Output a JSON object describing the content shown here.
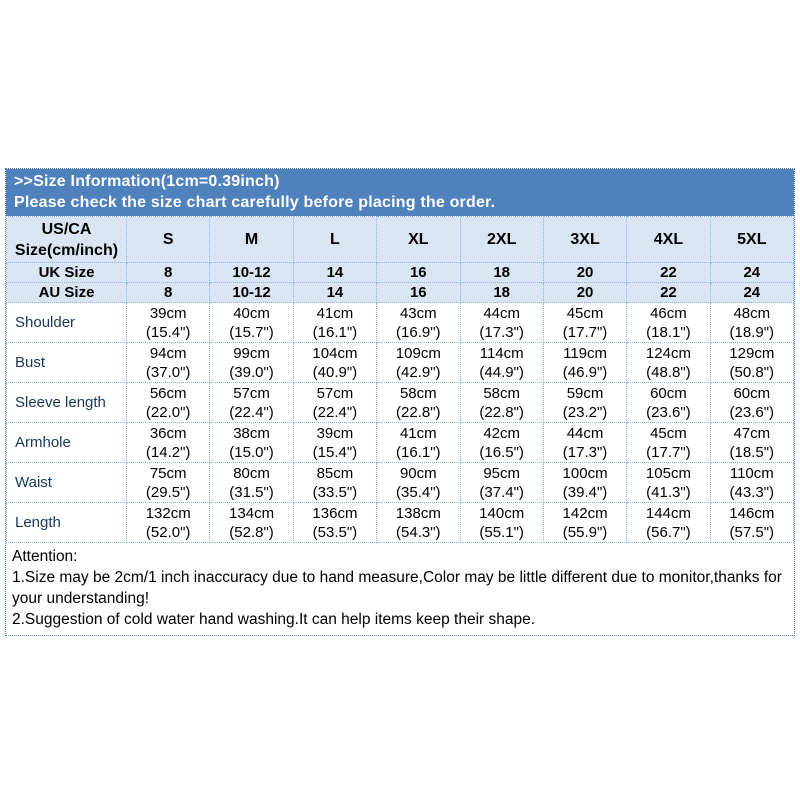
{
  "banner": {
    "title": ">>Size Information(1cm=0.39inch)",
    "subtitle": "Please check the size chart carefully before placing the order."
  },
  "size_chart": {
    "corner_header": "US/CA\nSize(cm/inch)",
    "size_columns": [
      "S",
      "M",
      "L",
      "XL",
      "2XL",
      "3XL",
      "4XL",
      "5XL"
    ],
    "uk": {
      "label": "UK Size",
      "values": [
        "8",
        "10-12",
        "14",
        "16",
        "18",
        "20",
        "22",
        "24"
      ]
    },
    "au": {
      "label": "AU Size",
      "values": [
        "8",
        "10-12",
        "14",
        "16",
        "18",
        "20",
        "22",
        "24"
      ]
    },
    "measurements": [
      {
        "label": "Shoulder",
        "values": [
          "39cm\n(15.4\")",
          "40cm\n(15.7\")",
          "41cm\n(16.1\")",
          "43cm\n(16.9\")",
          "44cm\n(17.3\")",
          "45cm\n(17.7\")",
          "46cm\n(18.1\")",
          "48cm\n(18.9\")"
        ]
      },
      {
        "label": "Bust",
        "values": [
          "94cm\n(37.0\")",
          "99cm\n(39.0\")",
          "104cm\n(40.9\")",
          "109cm\n(42.9\")",
          "114cm\n(44.9\")",
          "119cm\n(46.9\")",
          "124cm\n(48.8\")",
          "129cm\n(50.8\")"
        ]
      },
      {
        "label": "Sleeve length",
        "values": [
          "56cm\n(22.0\")",
          "57cm\n(22.4\")",
          "57cm\n(22.4\")",
          "58cm\n(22.8\")",
          "58cm\n(22.8\")",
          "59cm\n(23.2\")",
          "60cm\n(23.6\")",
          "60cm\n(23.6\")"
        ]
      },
      {
        "label": "Armhole",
        "values": [
          "36cm\n(14.2\")",
          "38cm\n(15.0\")",
          "39cm\n(15.4\")",
          "41cm\n(16.1\")",
          "42cm\n(16.5\")",
          "44cm\n(17.3\")",
          "45cm\n(17.7\")",
          "47cm\n(18.5\")"
        ]
      },
      {
        "label": "Waist",
        "values": [
          "75cm\n(29.5\")",
          "80cm\n(31.5\")",
          "85cm\n(33.5\")",
          "90cm\n(35.4\")",
          "95cm\n(37.4\")",
          "100cm\n(39.4\")",
          "105cm\n(41.3\")",
          "110cm\n(43.3\")"
        ]
      },
      {
        "label": "Length",
        "values": [
          "132cm\n(52.0\")",
          "134cm\n(52.8\")",
          "136cm\n(53.5\")",
          "138cm\n(54.3\")",
          "140cm\n(55.1\")",
          "142cm\n(55.9\")",
          "144cm\n(56.7\")",
          "146cm\n(57.5\")"
        ]
      }
    ]
  },
  "attention": {
    "heading": "Attention:",
    "note1": "1.Size may be 2cm/1 inch inaccuracy due to hand measure,Color may be little different due to monitor,thanks for your understanding!",
    "note2": "2.Suggestion of cold water hand washing.It can help items keep their shape."
  },
  "colors": {
    "banner_bg": "#4f81bd",
    "header_row_bg": "#d9e5f3",
    "label_column_bg": "#5b9bd5",
    "label_text": "#16365c",
    "grid_border": "#8db3e2"
  }
}
